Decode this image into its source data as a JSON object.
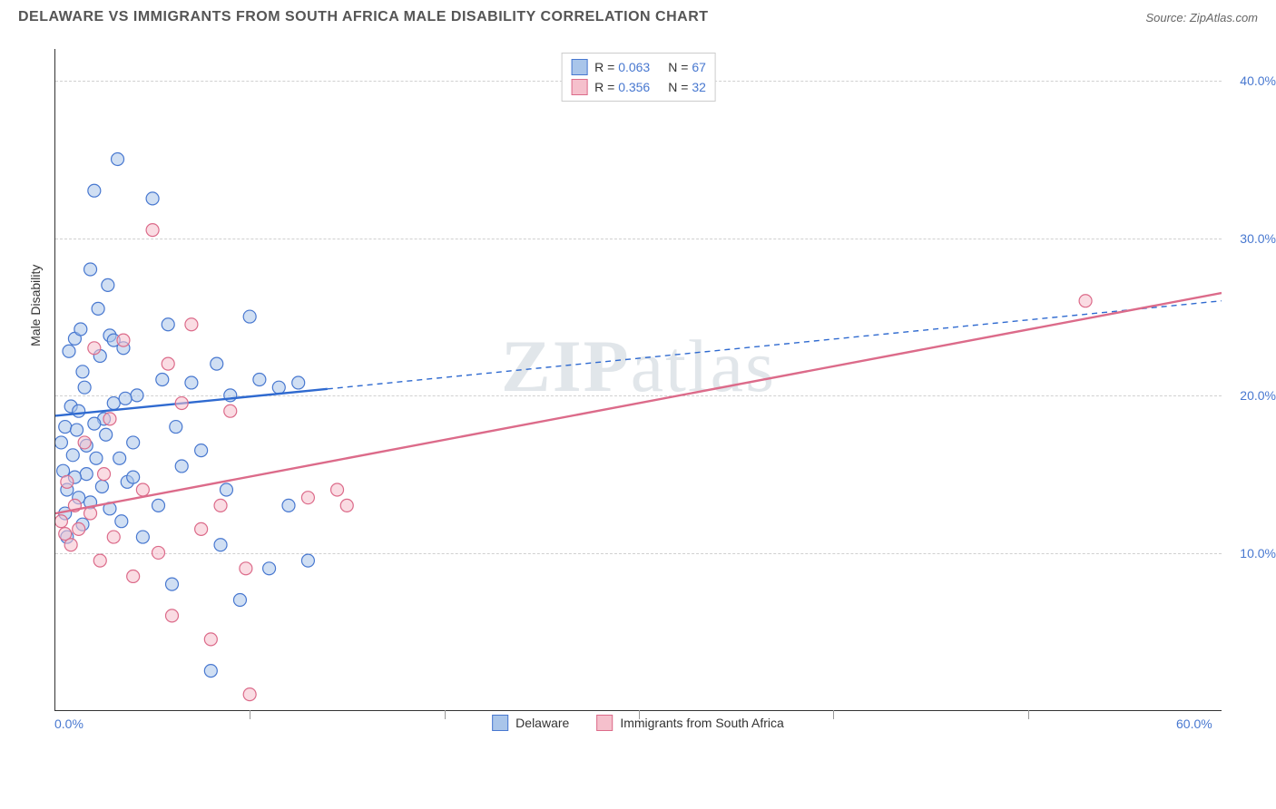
{
  "title": "DELAWARE VS IMMIGRANTS FROM SOUTH AFRICA MALE DISABILITY CORRELATION CHART",
  "source": "Source: ZipAtlas.com",
  "watermark": "ZIPatlas",
  "y_axis_label": "Male Disability",
  "chart": {
    "type": "scatter",
    "xlim": [
      0,
      60
    ],
    "ylim": [
      0,
      42
    ],
    "x_ticks": [
      0,
      60
    ],
    "x_tick_labels": [
      "0.0%",
      "60.0%"
    ],
    "y_gridlines": [
      10,
      20,
      30,
      40
    ],
    "y_tick_labels": [
      "10.0%",
      "20.0%",
      "30.0%",
      "40.0%"
    ],
    "x_minor_ticks": [
      10,
      20,
      30,
      40,
      50
    ],
    "background_color": "#ffffff",
    "grid_color": "#d0d0d0",
    "tick_color": "#4878d0",
    "marker_radius": 7,
    "marker_opacity": 0.55,
    "series": [
      {
        "name": "Delaware",
        "label": "Delaware",
        "R": "0.063",
        "N": "67",
        "fill": "#a9c5ea",
        "stroke": "#4878d0",
        "line_color": "#2f6ad0",
        "line_width": 2.4,
        "dash_extrapolate": true,
        "regression": {
          "x1": 0,
          "y1": 18.7,
          "x2": 60,
          "y2": 26.0,
          "solid_until_x": 14
        },
        "points": [
          [
            0.3,
            17.0
          ],
          [
            0.4,
            15.2
          ],
          [
            0.5,
            18.0
          ],
          [
            0.6,
            14.0
          ],
          [
            0.7,
            22.8
          ],
          [
            0.8,
            19.3
          ],
          [
            0.9,
            16.2
          ],
          [
            1.0,
            23.6
          ],
          [
            1.1,
            17.8
          ],
          [
            1.2,
            13.5
          ],
          [
            1.3,
            24.2
          ],
          [
            1.4,
            11.8
          ],
          [
            1.5,
            20.5
          ],
          [
            1.6,
            15.0
          ],
          [
            1.8,
            28.0
          ],
          [
            2.0,
            33.0
          ],
          [
            2.1,
            16.0
          ],
          [
            2.3,
            22.5
          ],
          [
            2.5,
            18.5
          ],
          [
            2.7,
            27.0
          ],
          [
            2.8,
            23.8
          ],
          [
            3.0,
            19.5
          ],
          [
            3.2,
            35.0
          ],
          [
            3.4,
            12.0
          ],
          [
            3.5,
            23.0
          ],
          [
            3.7,
            14.5
          ],
          [
            4.0,
            17.0
          ],
          [
            4.2,
            20.0
          ],
          [
            4.5,
            11.0
          ],
          [
            5.0,
            32.5
          ],
          [
            5.3,
            13.0
          ],
          [
            5.5,
            21.0
          ],
          [
            5.8,
            24.5
          ],
          [
            6.0,
            8.0
          ],
          [
            6.2,
            18.0
          ],
          [
            6.5,
            15.5
          ],
          [
            7.0,
            20.8
          ],
          [
            7.5,
            16.5
          ],
          [
            8.0,
            2.5
          ],
          [
            8.3,
            22.0
          ],
          [
            8.5,
            10.5
          ],
          [
            8.8,
            14.0
          ],
          [
            9.0,
            20.0
          ],
          [
            9.5,
            7.0
          ],
          [
            10.0,
            25.0
          ],
          [
            10.5,
            21.0
          ],
          [
            11.0,
            9.0
          ],
          [
            11.5,
            20.5
          ],
          [
            12.0,
            13.0
          ],
          [
            12.5,
            20.8
          ],
          [
            13.0,
            9.5
          ],
          [
            0.5,
            12.5
          ],
          [
            0.6,
            11.0
          ],
          [
            1.0,
            14.8
          ],
          [
            1.2,
            19.0
          ],
          [
            1.4,
            21.5
          ],
          [
            1.6,
            16.8
          ],
          [
            1.8,
            13.2
          ],
          [
            2.0,
            18.2
          ],
          [
            2.2,
            25.5
          ],
          [
            2.4,
            14.2
          ],
          [
            2.6,
            17.5
          ],
          [
            2.8,
            12.8
          ],
          [
            3.0,
            23.5
          ],
          [
            3.3,
            16.0
          ],
          [
            3.6,
            19.8
          ],
          [
            4.0,
            14.8
          ]
        ]
      },
      {
        "name": "Immigrants from South Africa",
        "label": "Immigrants from South Africa",
        "R": "0.356",
        "N": "32",
        "fill": "#f5c0cc",
        "stroke": "#dc6b8a",
        "line_color": "#dc6b8a",
        "line_width": 2.4,
        "dash_extrapolate": false,
        "regression": {
          "x1": 0,
          "y1": 12.5,
          "x2": 60,
          "y2": 26.5,
          "solid_until_x": 60
        },
        "points": [
          [
            0.3,
            12.0
          ],
          [
            0.5,
            11.2
          ],
          [
            0.6,
            14.5
          ],
          [
            0.8,
            10.5
          ],
          [
            1.0,
            13.0
          ],
          [
            1.2,
            11.5
          ],
          [
            1.5,
            17.0
          ],
          [
            1.8,
            12.5
          ],
          [
            2.0,
            23.0
          ],
          [
            2.3,
            9.5
          ],
          [
            2.5,
            15.0
          ],
          [
            2.8,
            18.5
          ],
          [
            3.0,
            11.0
          ],
          [
            3.5,
            23.5
          ],
          [
            4.0,
            8.5
          ],
          [
            4.5,
            14.0
          ],
          [
            5.0,
            30.5
          ],
          [
            5.3,
            10.0
          ],
          [
            5.8,
            22.0
          ],
          [
            6.0,
            6.0
          ],
          [
            6.5,
            19.5
          ],
          [
            7.0,
            24.5
          ],
          [
            7.5,
            11.5
          ],
          [
            8.0,
            4.5
          ],
          [
            8.5,
            13.0
          ],
          [
            9.0,
            19.0
          ],
          [
            9.8,
            9.0
          ],
          [
            10.0,
            1.0
          ],
          [
            13.0,
            13.5
          ],
          [
            14.5,
            14.0
          ],
          [
            15.0,
            13.0
          ],
          [
            53.0,
            26.0
          ]
        ]
      }
    ]
  },
  "legend_top": [
    {
      "series_idx": 0
    },
    {
      "series_idx": 1
    }
  ],
  "legend_bottom": [
    {
      "series_idx": 0
    },
    {
      "series_idx": 1
    }
  ]
}
